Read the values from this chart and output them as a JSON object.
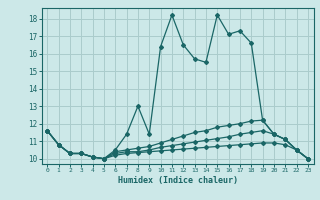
{
  "xlabel": "Humidex (Indice chaleur)",
  "bg_color": "#cce8e8",
  "grid_color": "#aacccc",
  "line_color": "#1a6666",
  "xlim": [
    -0.5,
    23.5
  ],
  "ylim": [
    9.7,
    18.6
  ],
  "yticks": [
    10,
    11,
    12,
    13,
    14,
    15,
    16,
    17,
    18
  ],
  "xticks": [
    0,
    1,
    2,
    3,
    4,
    5,
    6,
    7,
    8,
    9,
    10,
    11,
    12,
    13,
    14,
    15,
    16,
    17,
    18,
    19,
    20,
    21,
    22,
    23
  ],
  "xtick_labels": [
    "0",
    "1",
    "2",
    "3",
    "4",
    "5",
    "6",
    "7",
    "8",
    "9",
    "10",
    "11",
    "12",
    "13",
    "14",
    "15",
    "16",
    "17",
    "18",
    "19",
    "20",
    "21",
    "22",
    "23"
  ],
  "series": [
    [
      11.6,
      10.8,
      10.3,
      10.3,
      10.1,
      10.0,
      10.5,
      11.4,
      13.0,
      11.4,
      16.4,
      18.2,
      16.5,
      15.7,
      15.5,
      18.2,
      17.1,
      17.3,
      16.6,
      12.2,
      11.4,
      11.1,
      10.5,
      10.0
    ],
    [
      11.6,
      10.8,
      10.3,
      10.3,
      10.1,
      10.0,
      10.4,
      10.5,
      10.6,
      10.7,
      10.9,
      11.1,
      11.3,
      11.5,
      11.6,
      11.8,
      11.9,
      12.0,
      12.15,
      12.2,
      11.4,
      11.1,
      10.5,
      10.0
    ],
    [
      11.6,
      10.8,
      10.3,
      10.3,
      10.1,
      10.0,
      10.3,
      10.4,
      10.4,
      10.5,
      10.65,
      10.75,
      10.85,
      10.95,
      11.05,
      11.15,
      11.25,
      11.4,
      11.5,
      11.6,
      11.4,
      11.1,
      10.5,
      10.0
    ],
    [
      11.6,
      10.8,
      10.3,
      10.3,
      10.1,
      10.0,
      10.2,
      10.3,
      10.35,
      10.4,
      10.45,
      10.5,
      10.55,
      10.6,
      10.65,
      10.7,
      10.75,
      10.8,
      10.85,
      10.9,
      10.9,
      10.8,
      10.5,
      10.0
    ]
  ]
}
